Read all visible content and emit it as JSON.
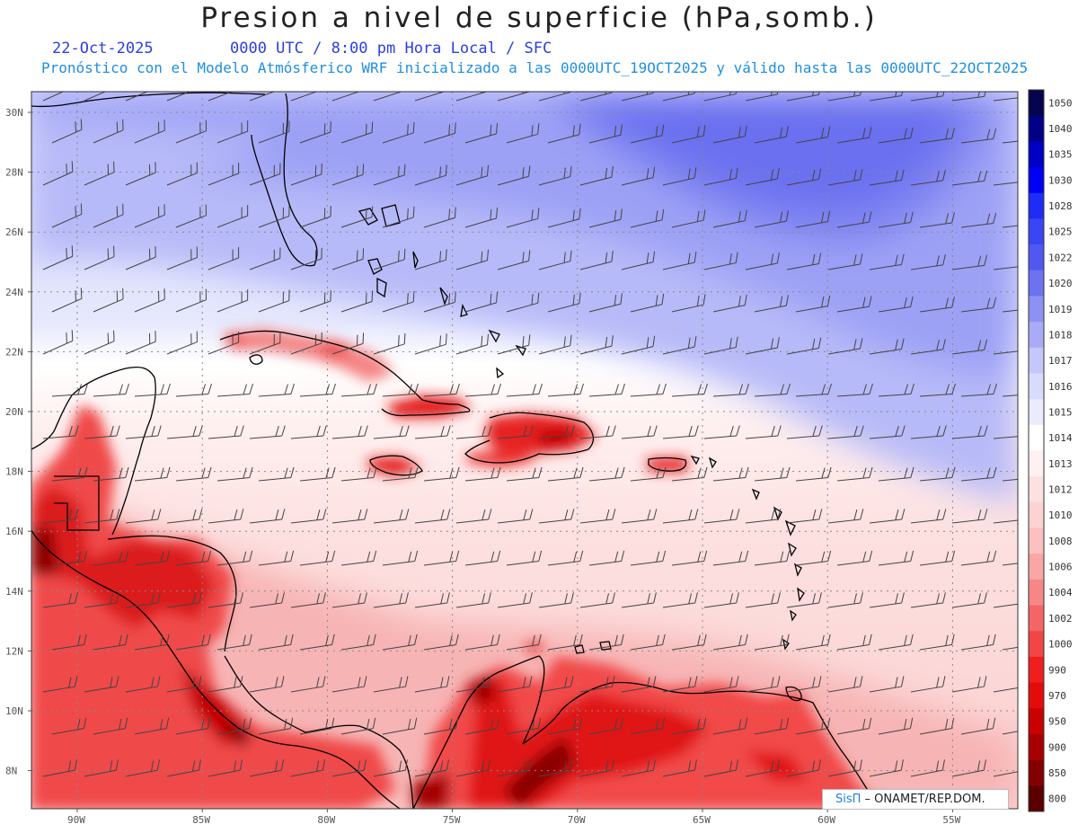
{
  "header": {
    "title": "Presion a nivel de superficie (hPa,somb.)",
    "date": "22-Oct-2025",
    "time_label": "0000 UTC / 8:00 pm Hora Local / SFC",
    "forecast_note": "Pronóstico con el Modelo Atmósferico WRF inicializado a las 0000UTC_19OCT2025 y válido hasta las  0000UTC_22OCT2025"
  },
  "map": {
    "lat_labels": [
      "30N",
      "28N",
      "26N",
      "24N",
      "22N",
      "20N",
      "18N",
      "16N",
      "14N",
      "12N",
      "10N",
      "8N"
    ],
    "lon_labels": [
      "90W",
      "85W",
      "80W",
      "75W",
      "70W",
      "65W",
      "60W",
      "55W"
    ],
    "high_pressure_color": "#6f73ee",
    "low_pressure_color": "#e81212",
    "neutral_color": "#ffffff",
    "coastline_color": "#000000",
    "wind_barb_color": "#444444"
  },
  "colorbar": {
    "levels": [
      {
        "label": "1050",
        "color": "#05054e"
      },
      {
        "label": "1040",
        "color": "#000086"
      },
      {
        "label": "1035",
        "color": "#0000c4"
      },
      {
        "label": "1030",
        "color": "#0000f4"
      },
      {
        "label": "1028",
        "color": "#1f2cf6"
      },
      {
        "label": "1025",
        "color": "#3a46f3"
      },
      {
        "label": "1022",
        "color": "#5158f1"
      },
      {
        "label": "1020",
        "color": "#6c72f0"
      },
      {
        "label": "1019",
        "color": "#8d91f4"
      },
      {
        "label": "1018",
        "color": "#a9abf6"
      },
      {
        "label": "1017",
        "color": "#c5c7fa"
      },
      {
        "label": "1016",
        "color": "#d9dbfc"
      },
      {
        "label": "1015",
        "color": "#eaebfd"
      },
      {
        "label": "1014",
        "color": "#ffffff"
      },
      {
        "label": "1013",
        "color": "#fff1f1"
      },
      {
        "label": "1012",
        "color": "#fde1e1"
      },
      {
        "label": "1010",
        "color": "#fcd2d2"
      },
      {
        "label": "1008",
        "color": "#fbc0c0"
      },
      {
        "label": "1006",
        "color": "#f9a6a6"
      },
      {
        "label": "1004",
        "color": "#f68787"
      },
      {
        "label": "1002",
        "color": "#f46666"
      },
      {
        "label": "1000",
        "color": "#f24545"
      },
      {
        "label": "990",
        "color": "#ef1f1f"
      },
      {
        "label": "970",
        "color": "#e40b0b"
      },
      {
        "label": "950",
        "color": "#c80000"
      },
      {
        "label": "900",
        "color": "#a70000"
      },
      {
        "label": "850",
        "color": "#840000"
      },
      {
        "label": "800",
        "color": "#5a0000"
      }
    ]
  },
  "credit": {
    "brand": "SisΠ",
    "label": " – ONAMET/REP.DOM."
  }
}
